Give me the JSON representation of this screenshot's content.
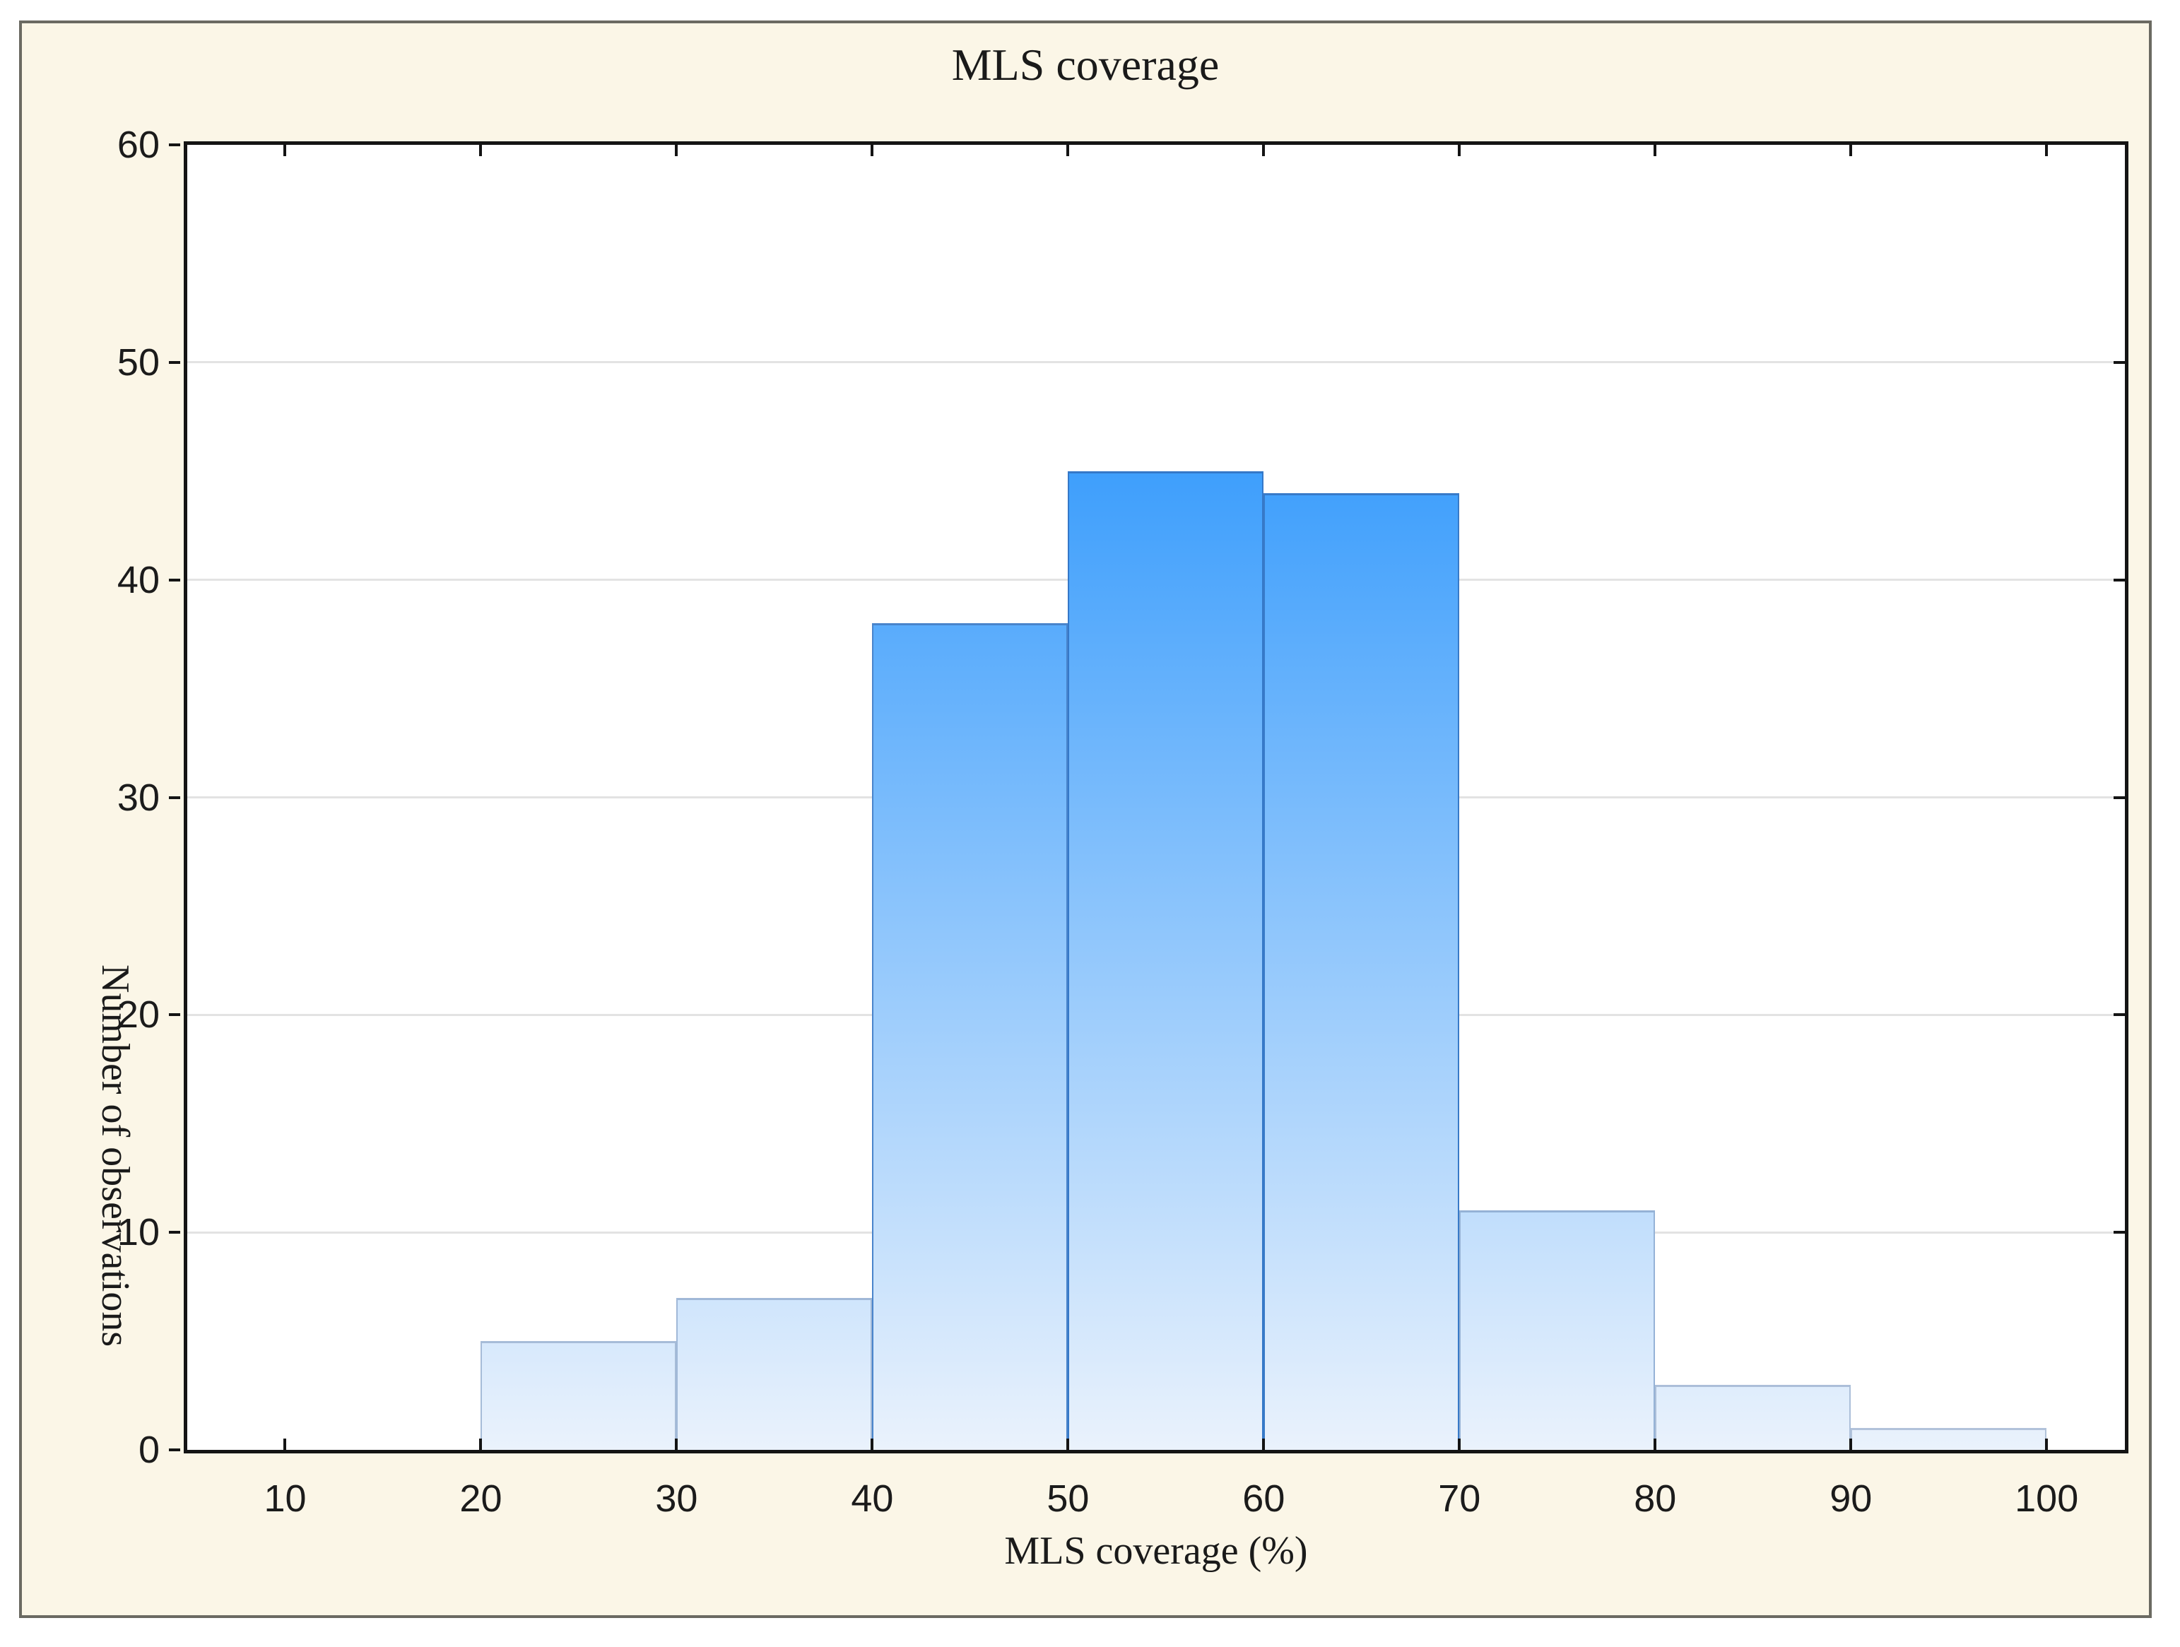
{
  "figure": {
    "background": "#FBF6E7",
    "border_color": "#6B6A62"
  },
  "chart_data": {
    "type": "bar",
    "subtype": "histogram",
    "title": "MLS coverage",
    "xlabel": "MLS coverage (%)",
    "ylabel": "Number of observations",
    "bin_edges": [
      20,
      30,
      40,
      50,
      60,
      70,
      80,
      90,
      100
    ],
    "values": [
      5,
      7,
      38,
      45,
      44,
      11,
      3,
      1
    ],
    "x_ticks": [
      10,
      20,
      30,
      40,
      50,
      60,
      70,
      80,
      90,
      100
    ],
    "y_ticks": [
      0,
      10,
      20,
      30,
      40,
      50,
      60
    ],
    "xlim": [
      5,
      104
    ],
    "ylim": [
      0,
      60
    ],
    "grid": "horizontal-only",
    "legend": "none",
    "colors": {
      "bar_gradient_top": "#0583FC",
      "bar_gradient_bottom": "#EAF2FC",
      "bar_border_dark": "#2770C6",
      "bar_border_light": "#B4C4DA",
      "axis": "#141414",
      "gridline": "#E3E3E3",
      "plot_background": "#FFFFFF",
      "figure_background": "#FBF6E7",
      "figure_border": "#6B6A62",
      "text": "#1B1B1B"
    }
  }
}
